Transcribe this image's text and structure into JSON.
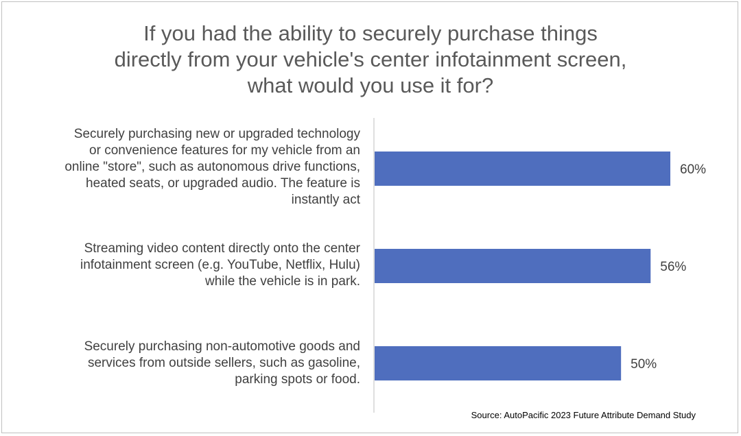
{
  "title_lines": [
    "If you had the ability to securely purchase things",
    "directly from your vehicle's center infotainment screen,",
    "what would you use it for?"
  ],
  "source": "Source: AutoPacific 2023 Future Attribute Demand Study",
  "colors": {
    "bar": "#4F6EBE",
    "axis": "#bfbfbf",
    "text": "#404040"
  },
  "chart_data": {
    "type": "bar",
    "orientation": "horizontal",
    "title": "If you had the ability to securely purchase things directly from your vehicle's center infotainment screen, what would you use it for?",
    "categories": [
      "Securely purchasing new or upgraded technology or convenience features for my vehicle from an online \"store\", such as autonomous drive functions, heated seats, or upgraded audio. The feature is instantly act",
      "Streaming video content directly onto the center infotainment screen (e.g. YouTube, Netflix, Hulu) while the vehicle is in park.",
      "Securely purchasing non-automotive goods and services from outside sellers, such as gasoline, parking spots or food."
    ],
    "category_lines": [
      [
        "Securely purchasing new or upgraded technology",
        "or convenience features for my vehicle from an",
        "online \"store\", such as autonomous drive functions,",
        "heated seats, or upgraded audio. The feature is",
        "instantly act"
      ],
      [
        "Streaming video content directly onto the center",
        "infotainment screen (e.g. YouTube, Netflix, Hulu)",
        "while the vehicle is in park."
      ],
      [
        "Securely purchasing non-automotive goods and",
        "services from outside sellers, such as gasoline,",
        "parking spots or food."
      ]
    ],
    "values": [
      60,
      56,
      50
    ],
    "data_labels": [
      "60%",
      "56%",
      "50%"
    ],
    "xlim": [
      0,
      60
    ],
    "grid": false,
    "legend": "none"
  }
}
